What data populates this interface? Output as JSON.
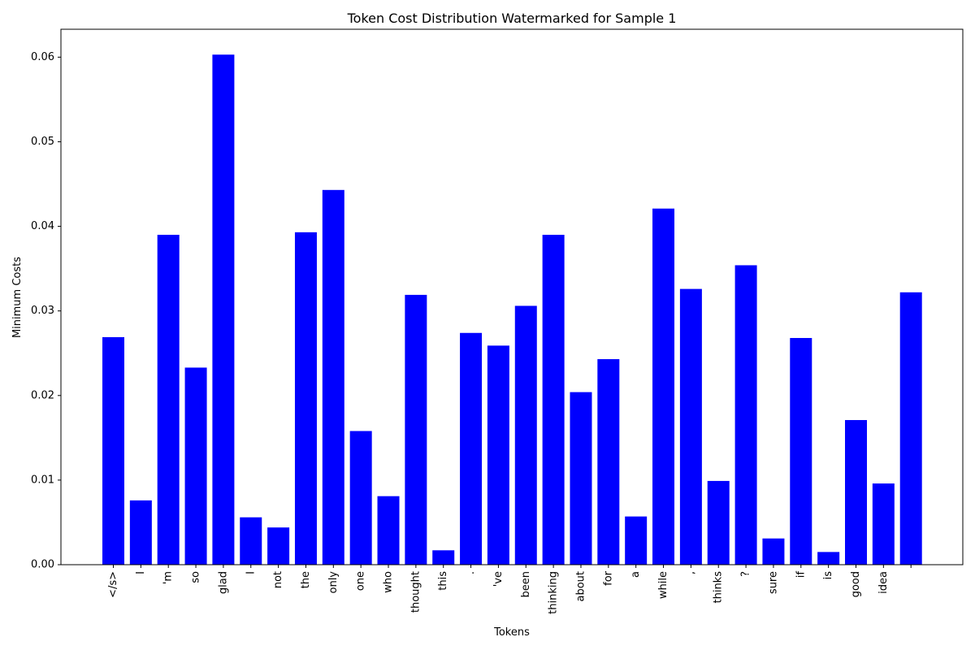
{
  "chart_data": {
    "type": "bar",
    "title": "Token Cost Distribution Watermarked for Sample 1",
    "xlabel": "Tokens",
    "ylabel": "Minimum Costs",
    "categories": [
      "</s>",
      "I",
      "'m",
      "so",
      "glad",
      "I",
      "not",
      "the",
      "only",
      "one",
      "who",
      "thought",
      "this",
      ".",
      "'ve",
      "been",
      "thinking",
      "about",
      "for",
      "a",
      "while",
      ",",
      "thinks",
      "?",
      "sure",
      "if",
      "is",
      "good",
      "idea",
      ""
    ],
    "values": [
      0.0269,
      0.0076,
      0.039,
      0.0233,
      0.0603,
      0.0056,
      0.0044,
      0.0393,
      0.0443,
      0.0158,
      0.0081,
      0.0319,
      0.0017,
      0.0274,
      0.0259,
      0.0306,
      0.039,
      0.0204,
      0.0243,
      0.0057,
      0.0421,
      0.0326,
      0.0099,
      0.0354,
      0.0031,
      0.0268,
      0.0015,
      0.0171,
      0.0096,
      0.0322
    ],
    "yticks": [
      "0.00",
      "0.01",
      "0.02",
      "0.03",
      "0.04",
      "0.05",
      "0.06"
    ],
    "ylim": [
      0,
      0.0633
    ],
    "bar_color": "#0000ff",
    "grid": false,
    "legend": "none"
  }
}
